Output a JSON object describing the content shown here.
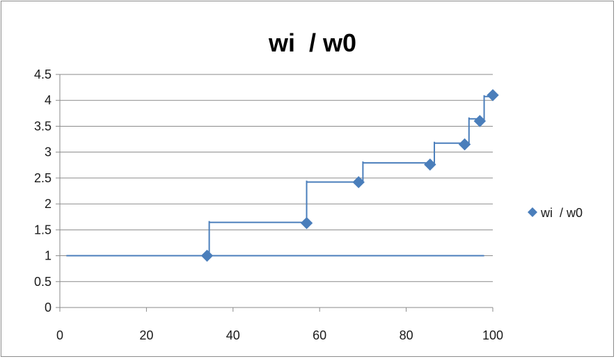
{
  "chart_data": {
    "type": "scatter",
    "title": "wi  / w0",
    "xlabel": "",
    "ylabel": "",
    "xlim": [
      0,
      100
    ],
    "ylim": [
      0,
      4.5
    ],
    "x_ticks": [
      0,
      20,
      40,
      60,
      80,
      100
    ],
    "x_tick_labels": [
      "0",
      "20",
      "40",
      "60",
      "80",
      "100"
    ],
    "y_ticks": [
      0,
      0.5,
      1,
      1.5,
      2,
      2.5,
      3,
      3.5,
      4,
      4.5
    ],
    "y_tick_labels": [
      "0",
      "0.5",
      "1",
      "1.5",
      "2",
      "2.5",
      "3",
      "3.5",
      "4",
      "4.5"
    ],
    "grid": "horizontal",
    "legend": "right",
    "series": [
      {
        "name": "wi  / w0",
        "marker": "diamond",
        "color": "#4a7ebb",
        "x": [
          34,
          57,
          69,
          85.5,
          93.5,
          97,
          100
        ],
        "y": [
          1.0,
          1.63,
          2.42,
          2.76,
          3.15,
          3.6,
          4.1
        ]
      }
    ],
    "step_lines": {
      "color": "#4a7ebb",
      "baseline": {
        "y": 1.0,
        "x": [
          1.5,
          98
        ]
      },
      "steps": [
        {
          "x_vertical": 34.5,
          "y_from": 1.0,
          "y_to": 1.67,
          "x_end": 57
        },
        {
          "x_vertical": 57,
          "y_from": 1.63,
          "y_to": 2.45,
          "x_end": 69
        },
        {
          "x_vertical": 70,
          "y_from": 2.42,
          "y_to": 2.82,
          "x_end": 85.5
        },
        {
          "x_vertical": 86.5,
          "y_from": 2.76,
          "y_to": 3.2,
          "x_end": 93.5
        },
        {
          "x_vertical": 94.5,
          "y_from": 3.15,
          "y_to": 3.67,
          "x_end": 97
        },
        {
          "x_vertical": 98,
          "y_from": 3.6,
          "y_to": 4.1,
          "x_end": 100
        }
      ]
    }
  }
}
